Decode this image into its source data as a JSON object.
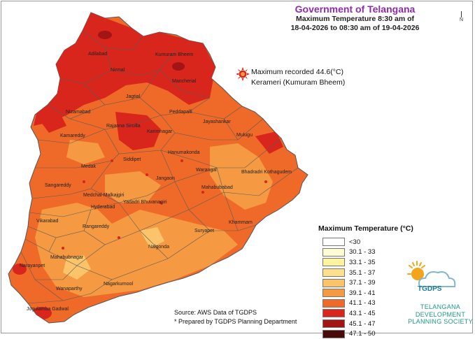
{
  "header": {
    "title": "Government of Telangana",
    "line1": "Maximum Temperature 8:30 am of",
    "line2": "18-04-2026  to 08:30 am of 19-04-2026"
  },
  "north_arrow": "N",
  "max_record": {
    "line1": "Maximum recorded 44.6(°C)",
    "line2": "Kerameri (Kumuram Bheem)"
  },
  "legend": {
    "title": "Maximum Temperature (°C)",
    "items": [
      {
        "label": "<30",
        "color": "#ffffff"
      },
      {
        "label": "30.1 - 33",
        "color": "#fffbd4"
      },
      {
        "label": "33.1 - 35",
        "color": "#fff3a0"
      },
      {
        "label": "35.1 - 37",
        "color": "#fde08a"
      },
      {
        "label": "37.1 - 39",
        "color": "#fbc46a"
      },
      {
        "label": "39.1 - 41",
        "color": "#f59a42"
      },
      {
        "label": "41.1 - 43",
        "color": "#ef6a28"
      },
      {
        "label": "43.1 - 45",
        "color": "#d8261d"
      },
      {
        "label": "45.1 - 47",
        "color": "#a31414"
      },
      {
        "label": "47.1 - 50",
        "color": "#4a0a0a"
      }
    ]
  },
  "source": {
    "line1": "Source: AWS Data of TGDPS",
    "line2": "* Prepared by TGDPS Planning Department"
  },
  "logo": {
    "abbr": "TGDPS",
    "line1": "TELANGANA",
    "line2": "DEVELOPMENT",
    "line3": "PLANNING SOCIETY"
  },
  "districts": [
    {
      "name": "Adilabad",
      "key": "adilabad"
    },
    {
      "name": "Kumuram Bheem",
      "key": "kumuram_bheem"
    },
    {
      "name": "Nirmal",
      "key": "nirmal"
    },
    {
      "name": "Mancherial",
      "key": "mancherial"
    },
    {
      "name": "Jagtial",
      "key": "jagtial"
    },
    {
      "name": "Peddapalli",
      "key": "peddapalli"
    },
    {
      "name": "Nizamabad",
      "key": "nizamabad"
    },
    {
      "name": "Rajanna Sircilla",
      "key": "rajanna_sircilla"
    },
    {
      "name": "Jayashankar",
      "key": "jayashankar"
    },
    {
      "name": "Kamareddy",
      "key": "kamareddy"
    },
    {
      "name": "Karimnagar",
      "key": "karimnagar"
    },
    {
      "name": "Mulugu",
      "key": "mulugu"
    },
    {
      "name": "Medak",
      "key": "medak"
    },
    {
      "name": "Siddipet",
      "key": "siddipet"
    },
    {
      "name": "Hanumakonda",
      "key": "hanumakonda"
    },
    {
      "name": "Warangal",
      "key": "warangal"
    },
    {
      "name": "Bhadradri Kothagudem",
      "key": "bhadradri"
    },
    {
      "name": "Jangaon",
      "key": "jangaon"
    },
    {
      "name": "Sangareddy",
      "key": "sangareddy"
    },
    {
      "name": "Medchal-Malkajgiri",
      "key": "medchal"
    },
    {
      "name": "Mahabubabad",
      "key": "mahabubabad"
    },
    {
      "name": "Hyderabad",
      "key": "hyderabad"
    },
    {
      "name": "Yadadri Bhuvanagiri",
      "key": "yadadri"
    },
    {
      "name": "Khammam",
      "key": "khammam"
    },
    {
      "name": "Vikarabad",
      "key": "vikarabad"
    },
    {
      "name": "Rangareddy",
      "key": "rangareddy"
    },
    {
      "name": "Suryapet",
      "key": "suryapet"
    },
    {
      "name": "Nalgonda",
      "key": "nalgonda"
    },
    {
      "name": "Narayanpet",
      "key": "narayanpet"
    },
    {
      "name": "Mahabubnagar",
      "key": "mahabubnagar"
    },
    {
      "name": "Wanaparthy",
      "key": "wanaparthy"
    },
    {
      "name": "Nagarkurnool",
      "key": "nagarkurnool"
    },
    {
      "name": "Jogulamba Gadwal",
      "key": "gadwal"
    }
  ]
}
